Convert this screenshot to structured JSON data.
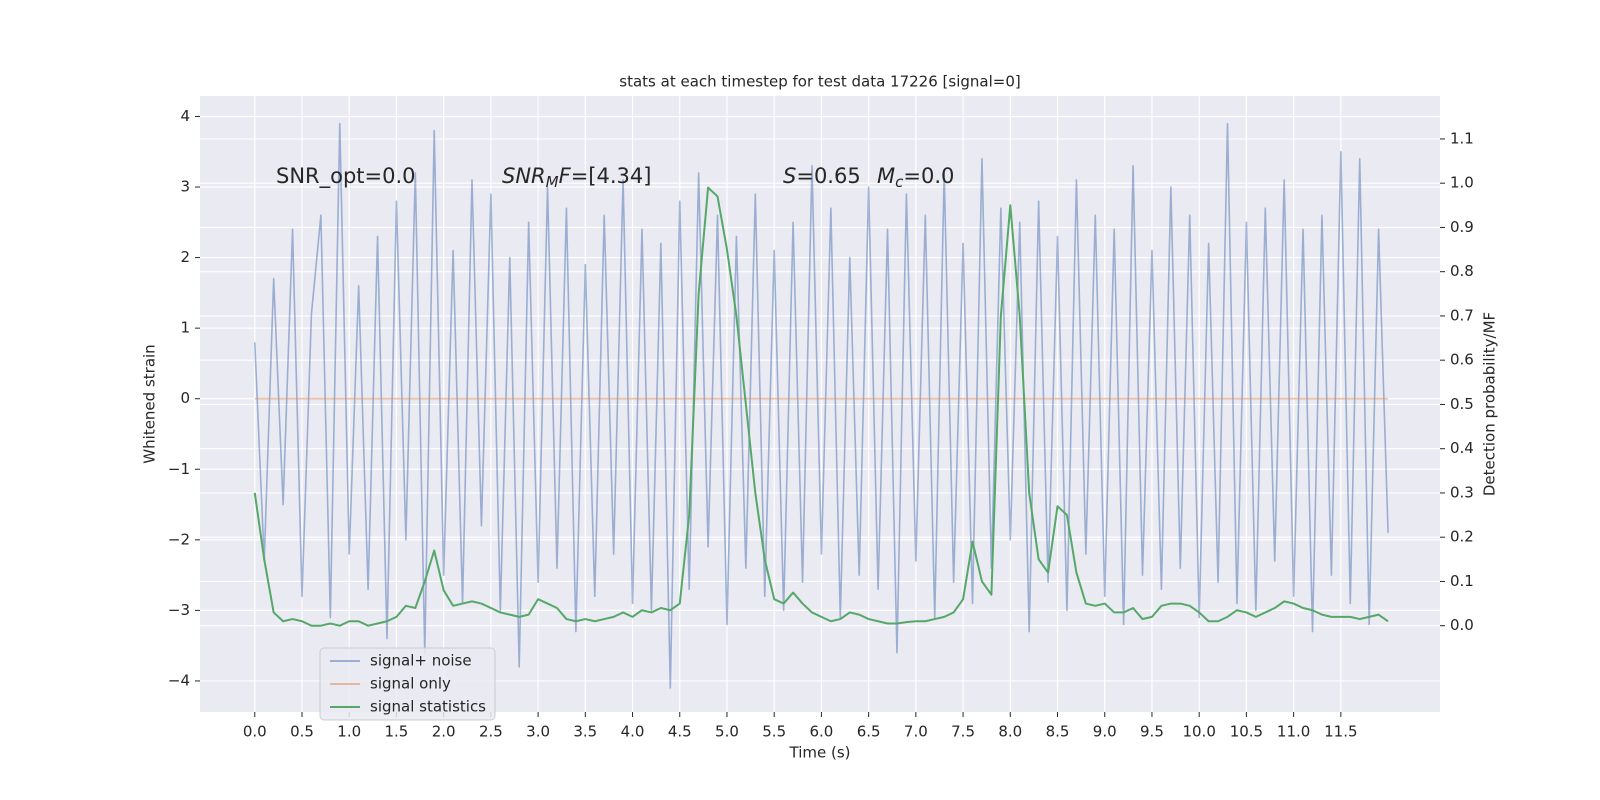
{
  "chart_data": {
    "type": "line",
    "title": "stats at each timestep for test data 17226 [signal=0]",
    "x_label": "Time (s)",
    "y_label": "Whitened strain",
    "y2_label": "Detection probability/MF",
    "xlim": [
      -0.58,
      12.55
    ],
    "ylim": [
      -4.44,
      4.29
    ],
    "y2lim": [
      -0.195,
      1.197
    ],
    "xticks": [
      {
        "value": 0,
        "label": "0.0"
      },
      0.5,
      {
        "value": 1,
        "label": "1.0"
      },
      1.5,
      {
        "value": 2,
        "label": "2.0"
      },
      2.5,
      {
        "value": 3,
        "label": "3.0"
      },
      3.5,
      {
        "value": 4,
        "label": "4.0"
      },
      4.5,
      {
        "value": 5,
        "label": "5.0"
      },
      5.5,
      {
        "value": 6,
        "label": "6.0"
      },
      6.5,
      {
        "value": 7,
        "label": "7.0"
      },
      7.5,
      {
        "value": 8,
        "label": "8.0"
      },
      8.5,
      {
        "value": 9,
        "label": "9.0"
      },
      9.5,
      {
        "value": 10,
        "label": "10.0"
      },
      10.5,
      {
        "value": 11,
        "label": "11.0"
      },
      11.5
    ],
    "yticks": [
      {
        "value": -4,
        "label": "−4"
      },
      {
        "value": -3,
        "label": "−3"
      },
      {
        "value": -2,
        "label": "−2"
      },
      {
        "value": -1,
        "label": "−1"
      },
      0,
      1,
      2,
      3,
      4
    ],
    "y2ticks": [
      {
        "value": 0,
        "label": "0.0"
      },
      0.1,
      0.2,
      0.3,
      0.4,
      0.5,
      0.6,
      0.7,
      0.8,
      0.9,
      {
        "value": 1,
        "label": "1.0"
      },
      1.1
    ],
    "grid": true,
    "legend": "lower left",
    "annotations": [
      {
        "parts": [
          {
            "text": "SNR_opt=0.0",
            "style": "normal"
          }
        ]
      },
      {
        "parts": [
          {
            "text": "SNR",
            "style": "italic"
          },
          {
            "text": "M",
            "style": "sub"
          },
          {
            "text": "F",
            "style": "italic"
          },
          {
            "text": "=[4.34]",
            "style": "normal"
          }
        ]
      },
      {
        "parts": [
          {
            "text": "S",
            "style": "italic"
          },
          {
            "text": "=0.65",
            "style": "normal"
          }
        ]
      },
      {
        "parts": [
          {
            "text": "M",
            "style": "italic"
          },
          {
            "text": "c",
            "style": "sub"
          },
          {
            "text": "=0.0",
            "style": "normal"
          }
        ]
      }
    ],
    "x": [
      0,
      0.1,
      0.2,
      0.3,
      0.4,
      0.5,
      0.6,
      0.7,
      0.8,
      0.9,
      1,
      1.1,
      1.2,
      1.3,
      1.4,
      1.5,
      1.6,
      1.7,
      1.8,
      1.9,
      2,
      2.1,
      2.2,
      2.3,
      2.4,
      2.5,
      2.6,
      2.7,
      2.8,
      2.9,
      3,
      3.1,
      3.2,
      3.3,
      3.4,
      3.5,
      3.6,
      3.7,
      3.8,
      3.9,
      4,
      4.1,
      4.2,
      4.3,
      4.4,
      4.5,
      4.6,
      4.7,
      4.8,
      4.9,
      5,
      5.1,
      5.2,
      5.3,
      5.4,
      5.5,
      5.6,
      5.7,
      5.8,
      5.9,
      6,
      6.1,
      6.2,
      6.3,
      6.4,
      6.5,
      6.6,
      6.7,
      6.8,
      6.9,
      7,
      7.1,
      7.2,
      7.3,
      7.4,
      7.5,
      7.6,
      7.7,
      7.8,
      7.9,
      8,
      8.1,
      8.2,
      8.3,
      8.4,
      8.5,
      8.6,
      8.7,
      8.8,
      8.9,
      9,
      9.1,
      9.2,
      9.3,
      9.4,
      9.5,
      9.6,
      9.7,
      9.8,
      9.9,
      10,
      10.1,
      10.2,
      10.3,
      10.4,
      10.5,
      10.6,
      10.7,
      10.8,
      10.9,
      11,
      11.1,
      11.2,
      11.3,
      11.4,
      11.5,
      11.6,
      11.7,
      11.8,
      11.9,
      12
    ],
    "series": [
      {
        "name": "signal+ noise",
        "color": "#4c72b0",
        "axis": "y",
        "values": [
          0.8,
          -2.3,
          1.7,
          -1.5,
          2.4,
          -2.8,
          1.2,
          2.6,
          -3.1,
          3.9,
          -2.2,
          1.6,
          -2.7,
          2.3,
          -3.4,
          2.8,
          -2.0,
          3.2,
          -3.6,
          3.8,
          -2.5,
          2.1,
          -2.9,
          3.1,
          -1.8,
          2.9,
          -3.0,
          2.0,
          -3.8,
          2.5,
          -2.6,
          3.0,
          -2.4,
          2.7,
          -3.3,
          1.9,
          -2.8,
          2.6,
          -2.2,
          3.1,
          -2.9,
          2.4,
          -3.0,
          2.2,
          -4.1,
          2.8,
          -2.7,
          3.2,
          -2.1,
          2.6,
          -3.2,
          2.3,
          -2.4,
          2.9,
          -2.8,
          2.1,
          -3.0,
          2.5,
          -2.6,
          3.3,
          -2.2,
          2.7,
          -3.1,
          2.0,
          -2.5,
          3.0,
          -2.7,
          2.4,
          -3.6,
          2.9,
          -2.3,
          2.6,
          -3.1,
          3.2,
          -2.6,
          2.2,
          -2.9,
          3.4,
          -2.4,
          2.7,
          -2.0,
          2.5,
          -3.3,
          2.8,
          -2.6,
          2.3,
          -3.0,
          3.1,
          -2.2,
          2.6,
          -2.8,
          2.4,
          -3.2,
          3.3,
          -2.5,
          2.1,
          -2.7,
          3.0,
          -2.4,
          2.6,
          -3.1,
          2.2,
          -2.6,
          3.9,
          -2.9,
          2.5,
          -3.0,
          2.7,
          -2.3,
          3.1,
          -2.8,
          2.4,
          -3.3,
          2.6,
          -2.5,
          3.5,
          -2.9,
          3.4,
          -3.2,
          2.4,
          -1.9
        ]
      },
      {
        "name": "signal only",
        "color": "#dd8452",
        "axis": "y",
        "x": [
          0,
          12
        ],
        "values": [
          0,
          0
        ]
      },
      {
        "name": "signal statistics",
        "color": "#55a868",
        "axis": "y2",
        "values": [
          0.3,
          0.15,
          0.03,
          0.01,
          0.015,
          0.01,
          0.0,
          0.0,
          0.005,
          0.0,
          0.01,
          0.01,
          0.0,
          0.005,
          0.01,
          0.02,
          0.045,
          0.04,
          0.1,
          0.17,
          0.08,
          0.045,
          0.05,
          0.055,
          0.05,
          0.04,
          0.03,
          0.025,
          0.02,
          0.025,
          0.06,
          0.05,
          0.04,
          0.015,
          0.01,
          0.015,
          0.01,
          0.015,
          0.02,
          0.03,
          0.02,
          0.035,
          0.03,
          0.04,
          0.035,
          0.05,
          0.25,
          0.75,
          0.99,
          0.97,
          0.85,
          0.7,
          0.5,
          0.3,
          0.15,
          0.06,
          0.05,
          0.075,
          0.05,
          0.03,
          0.02,
          0.01,
          0.015,
          0.03,
          0.025,
          0.015,
          0.01,
          0.005,
          0.005,
          0.008,
          0.01,
          0.01,
          0.015,
          0.02,
          0.03,
          0.06,
          0.19,
          0.1,
          0.07,
          0.7,
          0.95,
          0.7,
          0.3,
          0.15,
          0.12,
          0.27,
          0.25,
          0.12,
          0.05,
          0.045,
          0.05,
          0.03,
          0.03,
          0.04,
          0.015,
          0.02,
          0.045,
          0.05,
          0.05,
          0.045,
          0.03,
          0.01,
          0.01,
          0.02,
          0.035,
          0.03,
          0.02,
          0.03,
          0.04,
          0.055,
          0.05,
          0.04,
          0.035,
          0.025,
          0.02,
          0.02,
          0.02,
          0.015,
          0.02,
          0.025,
          0.01
        ]
      }
    ]
  }
}
